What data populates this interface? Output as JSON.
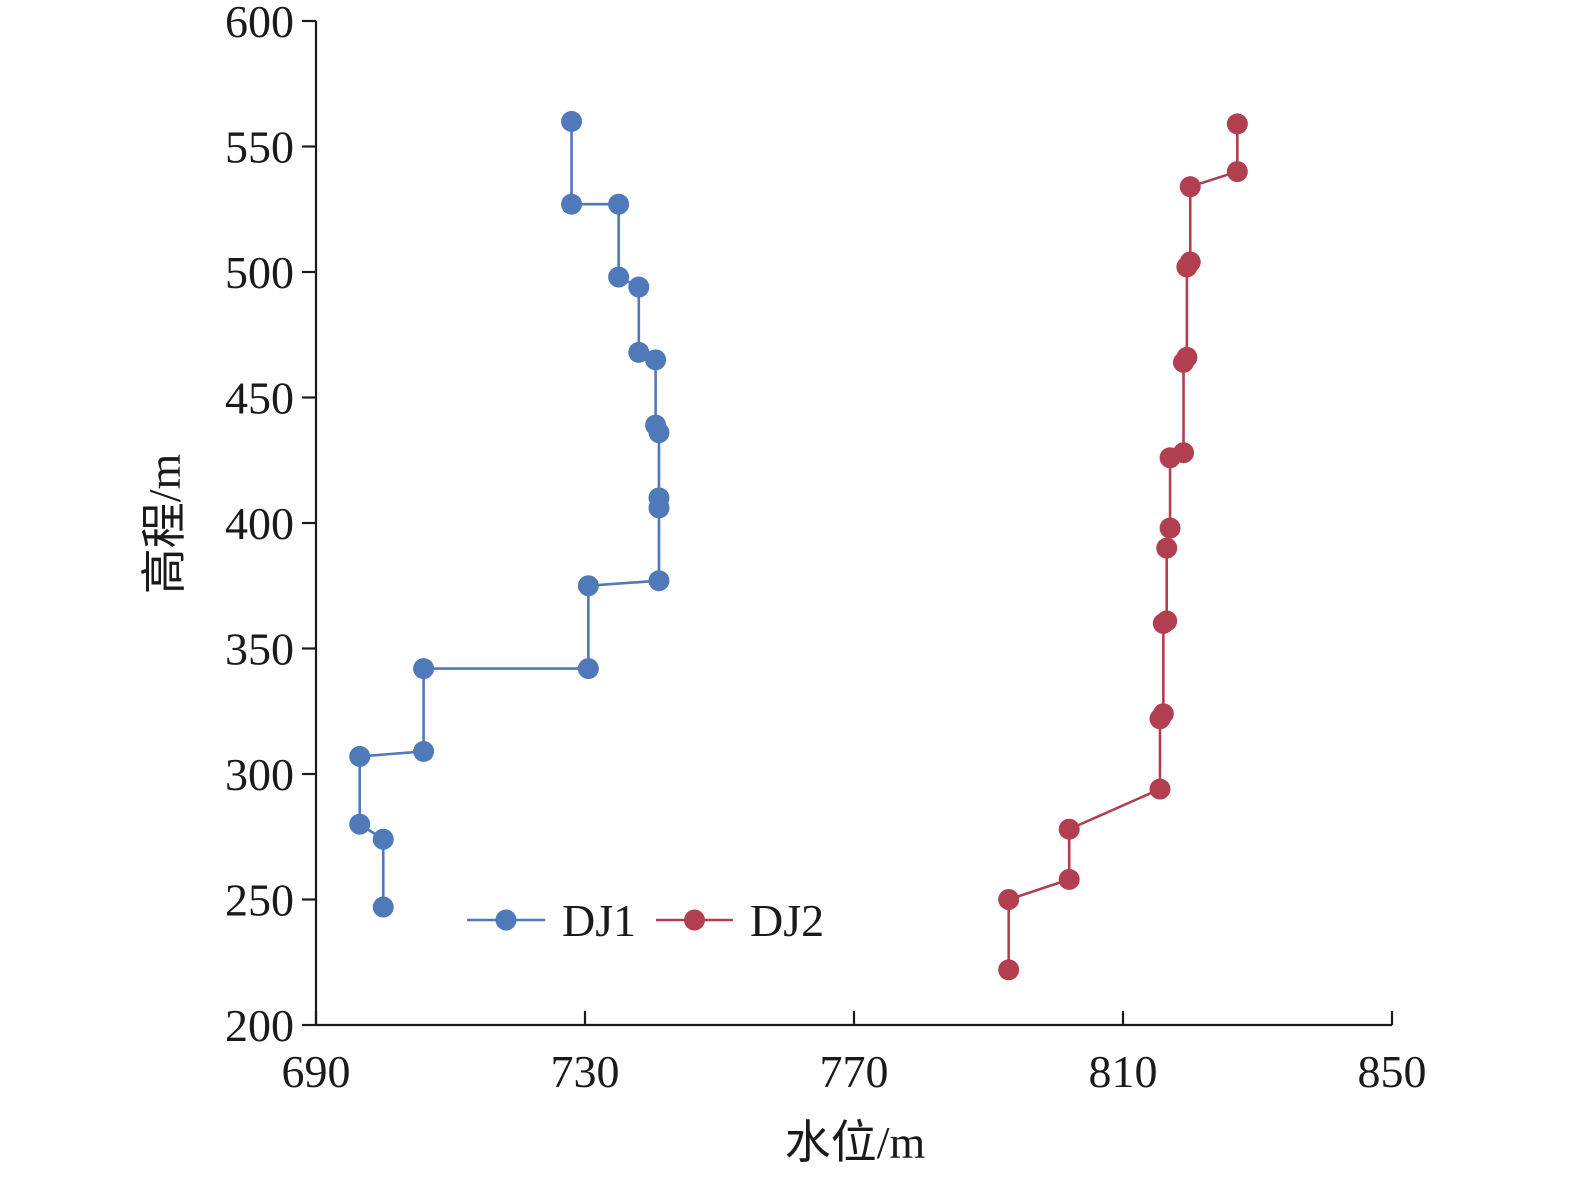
{
  "chart_data": {
    "type": "line",
    "title": "",
    "xlabel": "水位/m",
    "ylabel": "高程/m",
    "xlim": [
      690,
      850
    ],
    "ylim": [
      200,
      600
    ],
    "xticks": [
      "690",
      "730",
      "770",
      "810",
      "850"
    ],
    "yticks": [
      "200",
      "250",
      "300",
      "350",
      "400",
      "450",
      "500",
      "550",
      "600"
    ],
    "legend": {
      "position": "bottom-center"
    },
    "grid": false,
    "series": [
      {
        "name": "DJ1",
        "color": "#4f79b8",
        "points": [
          {
            "x": 728.0,
            "y": 560
          },
          {
            "x": 728.0,
            "y": 527
          },
          {
            "x": 735.0,
            "y": 527
          },
          {
            "x": 735.0,
            "y": 498
          },
          {
            "x": 738.0,
            "y": 494
          },
          {
            "x": 738.0,
            "y": 468
          },
          {
            "x": 740.5,
            "y": 465
          },
          {
            "x": 740.5,
            "y": 439
          },
          {
            "x": 741.0,
            "y": 436
          },
          {
            "x": 741.0,
            "y": 410
          },
          {
            "x": 741.0,
            "y": 406
          },
          {
            "x": 741.0,
            "y": 377
          },
          {
            "x": 730.5,
            "y": 375
          },
          {
            "x": 730.5,
            "y": 342
          },
          {
            "x": 706.0,
            "y": 342
          },
          {
            "x": 706.0,
            "y": 309
          },
          {
            "x": 696.5,
            "y": 307
          },
          {
            "x": 696.5,
            "y": 280
          },
          {
            "x": 700.0,
            "y": 274
          },
          {
            "x": 700.0,
            "y": 247
          }
        ]
      },
      {
        "name": "DJ2",
        "color": "#b23f4f",
        "points": [
          {
            "x": 827.0,
            "y": 559
          },
          {
            "x": 827.0,
            "y": 540
          },
          {
            "x": 820.0,
            "y": 534
          },
          {
            "x": 820.0,
            "y": 504
          },
          {
            "x": 819.5,
            "y": 502
          },
          {
            "x": 819.5,
            "y": 466
          },
          {
            "x": 819.0,
            "y": 464
          },
          {
            "x": 819.0,
            "y": 428
          },
          {
            "x": 817.0,
            "y": 426
          },
          {
            "x": 817.0,
            "y": 398
          },
          {
            "x": 816.5,
            "y": 390
          },
          {
            "x": 816.5,
            "y": 361
          },
          {
            "x": 816.0,
            "y": 360
          },
          {
            "x": 816.0,
            "y": 324
          },
          {
            "x": 815.5,
            "y": 322
          },
          {
            "x": 815.5,
            "y": 294
          },
          {
            "x": 802.0,
            "y": 278
          },
          {
            "x": 802.0,
            "y": 258
          },
          {
            "x": 793.0,
            "y": 250
          },
          {
            "x": 793.0,
            "y": 222
          }
        ]
      }
    ]
  }
}
